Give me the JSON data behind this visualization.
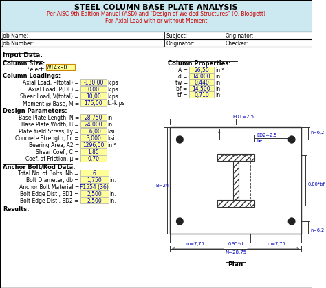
{
  "title1": "STEEL COLUMN BASE PLATE ANALYSIS",
  "title2": "Per AISC 9th Edition Manual (ASD) and \"Design of Welded Structures\" (O. Blodgett)",
  "title3": "For Axial Load with or without Moment",
  "header_bg": "#cce8f0",
  "col_select": "W14x90",
  "col_props": [
    [
      "A =",
      "26,50",
      "in.*2"
    ],
    [
      "d =",
      "14,000",
      "in."
    ],
    [
      "tw =",
      "0,440",
      "in."
    ],
    [
      "bf =",
      "14,500",
      "in."
    ],
    [
      "tf =",
      "0,710",
      "in."
    ]
  ],
  "col_loadings": [
    [
      "Axial Load, P(total) =",
      "-130,00",
      "kips"
    ],
    [
      "Axial Load, P(DL) =",
      "0,00",
      "kips"
    ],
    [
      "Shear Load, V(total) =",
      "10,00",
      "kips"
    ],
    [
      "Moment @ Base, M =",
      "175,00",
      "ft.-kips"
    ]
  ],
  "design_params": [
    [
      "Base Plate Length, N =",
      "28,750",
      "in."
    ],
    [
      "Base Plate Width, B =",
      "24,000",
      "in."
    ],
    [
      "Plate Yield Stress, Fy =",
      "36,00",
      "ksi"
    ],
    [
      "Concrete Strength, f'c =",
      "3,000",
      "ksi."
    ],
    [
      "Bearing Area, A2 =",
      "1296,00",
      "in.*2"
    ],
    [
      "Shear Coef., C =",
      "1,85",
      ""
    ],
    [
      "Coef. of Friction, μ =",
      "0,70",
      ""
    ]
  ],
  "bolt_data": [
    [
      "Total No. of Bolts, Nb =",
      "6",
      ""
    ],
    [
      "Bolt Diameter, db =",
      "1,750",
      "in."
    ],
    [
      "Anchor Bolt Material =",
      "F1554 (36)",
      ""
    ],
    [
      "Bolt Edge Dist., ED1 =",
      "2,500",
      "in."
    ],
    [
      "Bolt Edge Dist., ED2 =",
      "2,500",
      "in."
    ]
  ],
  "cell_color": "#ffff99",
  "diagram_labels": {
    "ED1": "ED1=2,5",
    "ED2": "ED2=2,5",
    "be": "be",
    "n1": "n=6,2",
    "n2": "n=6,2",
    "B": "B=24",
    "bf_label": "0.80*bf",
    "m1": "m=7,75",
    "m2": "m=7,75",
    "d_label": "0.95*d",
    "N": "N=28,75"
  }
}
